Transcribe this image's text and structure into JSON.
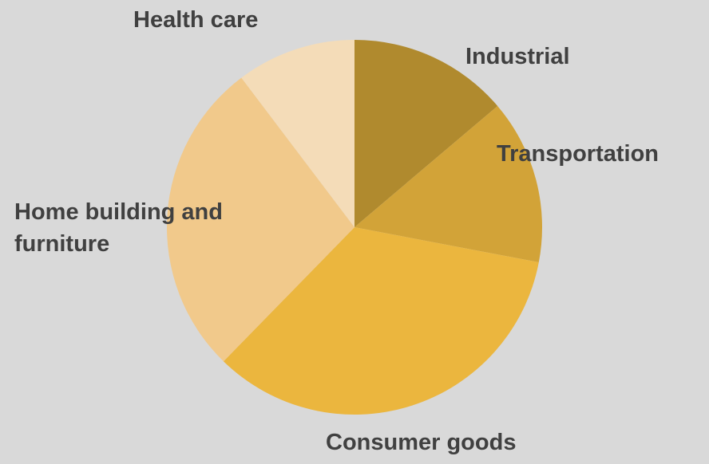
{
  "chart_data": {
    "type": "pie",
    "categories": [
      "Industrial",
      "Transportation",
      "Consumer goods",
      "Home building and furniture",
      "Health care"
    ],
    "values": [
      13.8,
      14.2,
      34.3,
      27.4,
      10.3
    ],
    "colors": [
      "#b08a2e",
      "#d2a338",
      "#ebb63e",
      "#f1c98b",
      "#f4dcb8"
    ],
    "start_angle": 0,
    "direction": "clockwise"
  }
}
